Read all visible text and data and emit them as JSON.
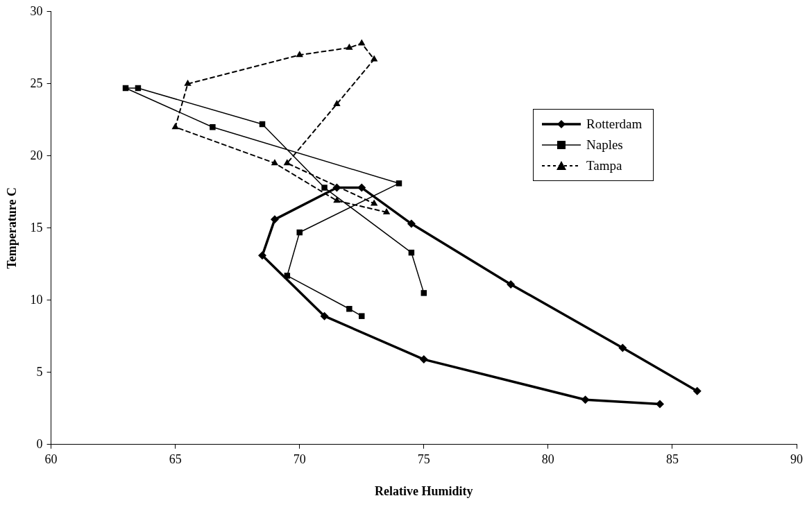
{
  "chart_data": {
    "type": "line",
    "xlabel": "Relative Humidity",
    "ylabel": "Temperature C",
    "xlim": [
      60,
      90
    ],
    "xticks": [
      60,
      65,
      70,
      75,
      80,
      85,
      90
    ],
    "ylim": [
      0,
      30
    ],
    "yticks": [
      0,
      5,
      10,
      15,
      20,
      25,
      30
    ],
    "grid": false,
    "legend": "right",
    "series": [
      {
        "name": "Rotterdam",
        "color": "#000000",
        "marker": "diamond",
        "line_style": "solid",
        "x": [
          84.5,
          81.5,
          75,
          71,
          68.5,
          69,
          71.5,
          72.5,
          74.5,
          78.5,
          83,
          86
        ],
        "values": [
          2.8,
          3.1,
          5.9,
          8.9,
          13.1,
          15.6,
          17.8,
          17.8,
          15.3,
          11.1,
          6.7,
          3.7
        ]
      },
      {
        "name": "Naples",
        "color": "#000000",
        "marker": "square",
        "line_style": "solid",
        "x": [
          75,
          74.5,
          71,
          68.5,
          63.5,
          63,
          66.5,
          74,
          70,
          69.5,
          72,
          72.5
        ],
        "values": [
          10.5,
          13.3,
          17.8,
          22.2,
          24.7,
          24.7,
          22.0,
          18.1,
          14.7,
          11.7,
          9.4,
          8.9
        ]
      },
      {
        "name": "Tampa",
        "color": "#000000",
        "marker": "triangle",
        "line_style": "dashed",
        "x": [
          73.5,
          71.5,
          69,
          65,
          65.5,
          70,
          72,
          72.5,
          73,
          71.5,
          69.5,
          73
        ],
        "values": [
          16.1,
          16.9,
          19.5,
          22.0,
          25.0,
          27.0,
          27.5,
          27.8,
          26.7,
          23.6,
          19.5,
          16.7
        ]
      }
    ]
  }
}
